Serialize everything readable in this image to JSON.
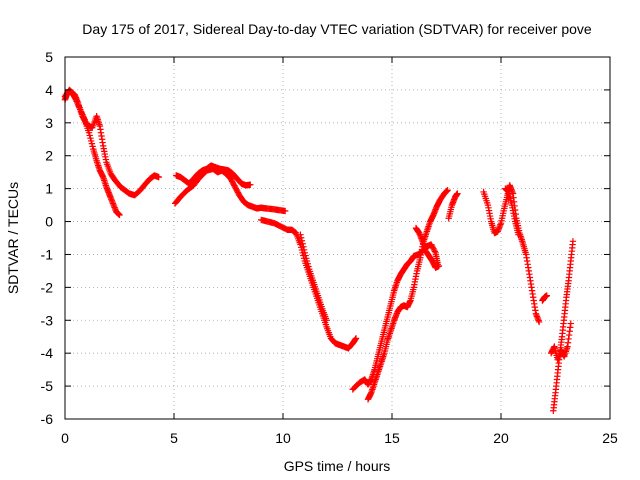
{
  "chart_data": {
    "type": "scatter",
    "title": "Day 175 of 2017, Sidereal Day-to-day VTEC variation (SDTVAR) for receiver pove",
    "xlabel": "GPS time / hours",
    "ylabel": "SDTVAR / TECUs",
    "xlim": [
      0,
      25
    ],
    "ylim": [
      -6,
      5
    ],
    "xticks": [
      0,
      5,
      10,
      15,
      20,
      25
    ],
    "yticks": [
      -6,
      -5,
      -4,
      -3,
      -2,
      -1,
      0,
      1,
      2,
      3,
      4,
      5
    ],
    "grid": true,
    "marker": "plus",
    "color": "#ff0000",
    "series": [
      {
        "segments": [
          [
            [
              0.0,
              3.7
            ],
            [
              0.1,
              3.9
            ],
            [
              0.2,
              3.95
            ],
            [
              0.35,
              3.9
            ],
            [
              0.5,
              3.7
            ],
            [
              0.7,
              3.4
            ],
            [
              0.9,
              3.1
            ],
            [
              1.1,
              2.7
            ],
            [
              1.3,
              2.2
            ],
            [
              1.45,
              1.85
            ],
            [
              1.6,
              1.55
            ],
            [
              1.75,
              1.35
            ],
            [
              1.9,
              1.05
            ],
            [
              2.05,
              0.8
            ],
            [
              2.2,
              0.55
            ],
            [
              2.35,
              0.3
            ],
            [
              2.5,
              0.2
            ]
          ],
          [
            [
              0.0,
              3.8
            ],
            [
              0.2,
              4.0
            ],
            [
              0.45,
              3.85
            ],
            [
              0.6,
              3.6
            ],
            [
              0.8,
              3.2
            ],
            [
              1.0,
              2.95
            ],
            [
              1.25,
              2.85
            ],
            [
              1.45,
              3.2
            ],
            [
              1.6,
              2.9
            ],
            [
              1.75,
              2.3
            ],
            [
              1.9,
              1.8
            ],
            [
              2.1,
              1.45
            ],
            [
              2.3,
              1.25
            ],
            [
              2.55,
              1.05
            ],
            [
              2.75,
              0.95
            ],
            [
              2.95,
              0.85
            ],
            [
              3.2,
              0.8
            ],
            [
              3.45,
              0.95
            ],
            [
              3.7,
              1.15
            ],
            [
              3.9,
              1.3
            ],
            [
              4.1,
              1.4
            ],
            [
              4.3,
              1.35
            ]
          ],
          [
            [
              5.05,
              0.55
            ],
            [
              5.3,
              0.75
            ],
            [
              5.6,
              0.95
            ],
            [
              5.9,
              1.1
            ],
            [
              6.2,
              1.35
            ],
            [
              6.5,
              1.55
            ],
            [
              6.8,
              1.6
            ],
            [
              7.0,
              1.5
            ],
            [
              7.2,
              1.55
            ],
            [
              7.4,
              1.45
            ],
            [
              7.6,
              1.3
            ],
            [
              7.8,
              1.05
            ],
            [
              8.0,
              0.8
            ],
            [
              8.2,
              0.6
            ],
            [
              8.4,
              0.5
            ],
            [
              8.6,
              0.45
            ],
            [
              8.8,
              0.4
            ],
            [
              9.0,
              0.42
            ],
            [
              9.2,
              0.4
            ],
            [
              9.5,
              0.38
            ],
            [
              9.8,
              0.35
            ],
            [
              10.1,
              0.32
            ]
          ],
          [
            [
              5.1,
              1.4
            ],
            [
              5.3,
              1.35
            ],
            [
              5.5,
              1.25
            ],
            [
              5.7,
              1.15
            ],
            [
              5.9,
              1.3
            ],
            [
              6.1,
              1.45
            ],
            [
              6.3,
              1.55
            ],
            [
              6.5,
              1.6
            ],
            [
              6.7,
              1.7
            ],
            [
              6.9,
              1.65
            ],
            [
              7.1,
              1.6
            ],
            [
              7.3,
              1.58
            ],
            [
              7.5,
              1.55
            ],
            [
              7.7,
              1.45
            ],
            [
              7.9,
              1.3
            ],
            [
              8.1,
              1.15
            ],
            [
              8.3,
              1.1
            ],
            [
              8.5,
              1.12
            ]
          ],
          [
            [
              9.0,
              0.05
            ],
            [
              9.3,
              0.0
            ],
            [
              9.6,
              -0.05
            ],
            [
              9.9,
              -0.15
            ],
            [
              10.2,
              -0.25
            ],
            [
              10.4,
              -0.25
            ],
            [
              10.6,
              -0.35
            ],
            [
              10.8,
              -0.7
            ],
            [
              11.0,
              -1.2
            ],
            [
              11.2,
              -1.6
            ],
            [
              11.4,
              -2.0
            ],
            [
              11.6,
              -2.4
            ],
            [
              11.8,
              -2.8
            ],
            [
              12.0,
              -3.2
            ],
            [
              12.2,
              -3.55
            ],
            [
              12.4,
              -3.7
            ],
            [
              12.6,
              -3.75
            ],
            [
              12.8,
              -3.8
            ],
            [
              13.0,
              -3.85
            ],
            [
              13.2,
              -3.7
            ],
            [
              13.35,
              -3.55
            ]
          ],
          [
            [
              10.8,
              -0.4
            ],
            [
              11.0,
              -0.95
            ],
            [
              11.2,
              -1.45
            ],
            [
              11.4,
              -1.85
            ],
            [
              11.6,
              -2.25
            ],
            [
              11.8,
              -2.65
            ],
            [
              12.0,
              -3.0
            ]
          ],
          [
            [
              13.2,
              -5.1
            ],
            [
              13.5,
              -4.9
            ],
            [
              13.75,
              -4.8
            ],
            [
              13.9,
              -4.95
            ],
            [
              14.05,
              -4.8
            ],
            [
              14.2,
              -4.5
            ],
            [
              14.35,
              -4.1
            ],
            [
              14.5,
              -3.7
            ],
            [
              14.65,
              -3.3
            ],
            [
              14.8,
              -2.9
            ],
            [
              14.95,
              -2.5
            ],
            [
              15.1,
              -2.1
            ],
            [
              15.25,
              -1.8
            ],
            [
              15.4,
              -1.6
            ],
            [
              15.55,
              -1.45
            ],
            [
              15.7,
              -1.3
            ],
            [
              15.85,
              -1.2
            ],
            [
              16.0,
              -1.05
            ],
            [
              16.2,
              -1.0
            ],
            [
              16.4,
              -0.9
            ],
            [
              16.6,
              -0.75
            ],
            [
              16.8,
              -0.7
            ],
            [
              17.0,
              -0.95
            ],
            [
              17.1,
              -1.3
            ]
          ],
          [
            [
              13.9,
              -5.4
            ],
            [
              14.05,
              -5.2
            ],
            [
              14.2,
              -4.9
            ],
            [
              14.35,
              -4.6
            ],
            [
              14.5,
              -4.3
            ],
            [
              14.65,
              -4.0
            ],
            [
              14.8,
              -3.6
            ],
            [
              14.95,
              -3.3
            ],
            [
              15.1,
              -3.0
            ],
            [
              15.25,
              -2.75
            ],
            [
              15.4,
              -2.6
            ],
            [
              15.55,
              -2.55
            ],
            [
              15.7,
              -2.6
            ],
            [
              15.85,
              -2.4
            ],
            [
              16.0,
              -2.0
            ],
            [
              16.15,
              -1.5
            ],
            [
              16.3,
              -1.1
            ],
            [
              16.45,
              -0.6
            ],
            [
              16.6,
              -0.3
            ],
            [
              16.75,
              0.0
            ],
            [
              16.9,
              0.2
            ],
            [
              17.05,
              0.45
            ],
            [
              17.2,
              0.65
            ],
            [
              17.4,
              0.85
            ],
            [
              17.55,
              0.95
            ]
          ],
          [
            [
              16.1,
              -0.2
            ],
            [
              16.25,
              -0.35
            ],
            [
              16.4,
              -0.6
            ],
            [
              16.55,
              -0.9
            ],
            [
              16.7,
              -1.05
            ],
            [
              16.85,
              -1.2
            ],
            [
              17.0,
              -1.4
            ],
            [
              17.15,
              -1.35
            ]
          ],
          [
            [
              17.6,
              0.1
            ],
            [
              17.75,
              0.5
            ],
            [
              17.9,
              0.75
            ],
            [
              18.0,
              0.85
            ]
          ],
          [
            [
              19.2,
              0.9
            ],
            [
              19.4,
              0.5
            ],
            [
              19.55,
              0.0
            ],
            [
              19.7,
              -0.35
            ],
            [
              19.85,
              -0.3
            ],
            [
              20.0,
              -0.05
            ],
            [
              20.15,
              0.4
            ],
            [
              20.3,
              0.8
            ],
            [
              20.4,
              1.1
            ],
            [
              20.55,
              0.85
            ],
            [
              20.7,
              0.1
            ],
            [
              20.85,
              -0.35
            ],
            [
              21.0,
              -0.65
            ],
            [
              21.15,
              -1.0
            ],
            [
              21.3,
              -1.6
            ],
            [
              21.45,
              -2.2
            ],
            [
              21.6,
              -2.8
            ],
            [
              21.75,
              -3.05
            ]
          ],
          [
            [
              20.2,
              1.0
            ],
            [
              20.35,
              0.9
            ],
            [
              20.5,
              0.5
            ],
            [
              20.65,
              0.0
            ],
            [
              20.8,
              -0.4
            ]
          ],
          [
            [
              21.9,
              -2.4
            ],
            [
              22.0,
              -2.3
            ],
            [
              22.1,
              -2.25
            ]
          ],
          [
            [
              22.4,
              -5.75
            ],
            [
              22.5,
              -5.2
            ],
            [
              22.6,
              -4.6
            ],
            [
              22.7,
              -4.0
            ],
            [
              22.8,
              -3.5
            ],
            [
              22.9,
              -2.9
            ],
            [
              23.0,
              -2.3
            ],
            [
              23.1,
              -1.8
            ],
            [
              23.2,
              -1.2
            ],
            [
              23.3,
              -0.6
            ]
          ],
          [
            [
              22.3,
              -4.0
            ],
            [
              22.45,
              -3.8
            ],
            [
              22.6,
              -4.2
            ],
            [
              22.75,
              -3.9
            ],
            [
              22.9,
              -4.1
            ],
            [
              23.05,
              -3.8
            ],
            [
              23.2,
              -3.1
            ]
          ]
        ]
      }
    ]
  }
}
